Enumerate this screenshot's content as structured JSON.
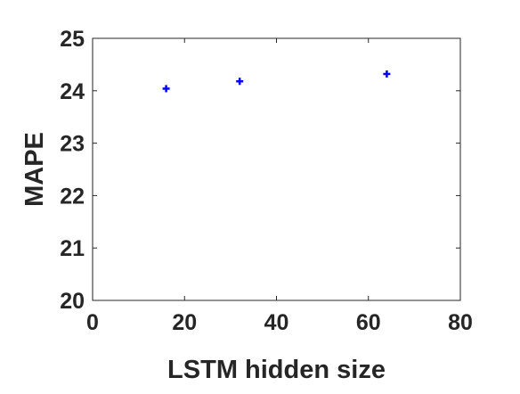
{
  "chart_data": {
    "type": "scatter",
    "xlabel": "LSTM hidden size",
    "ylabel": "MAPE",
    "xlim": [
      0,
      80
    ],
    "ylim": [
      20,
      25
    ],
    "x_ticks": [
      0,
      20,
      40,
      60,
      80
    ],
    "y_ticks": [
      20,
      21,
      22,
      23,
      24,
      25
    ],
    "grid": true,
    "marker": "+",
    "marker_color": "#0000ff",
    "series": [
      {
        "x": [
          16,
          32,
          64
        ],
        "y": [
          24.04,
          24.18,
          24.32
        ]
      }
    ]
  }
}
